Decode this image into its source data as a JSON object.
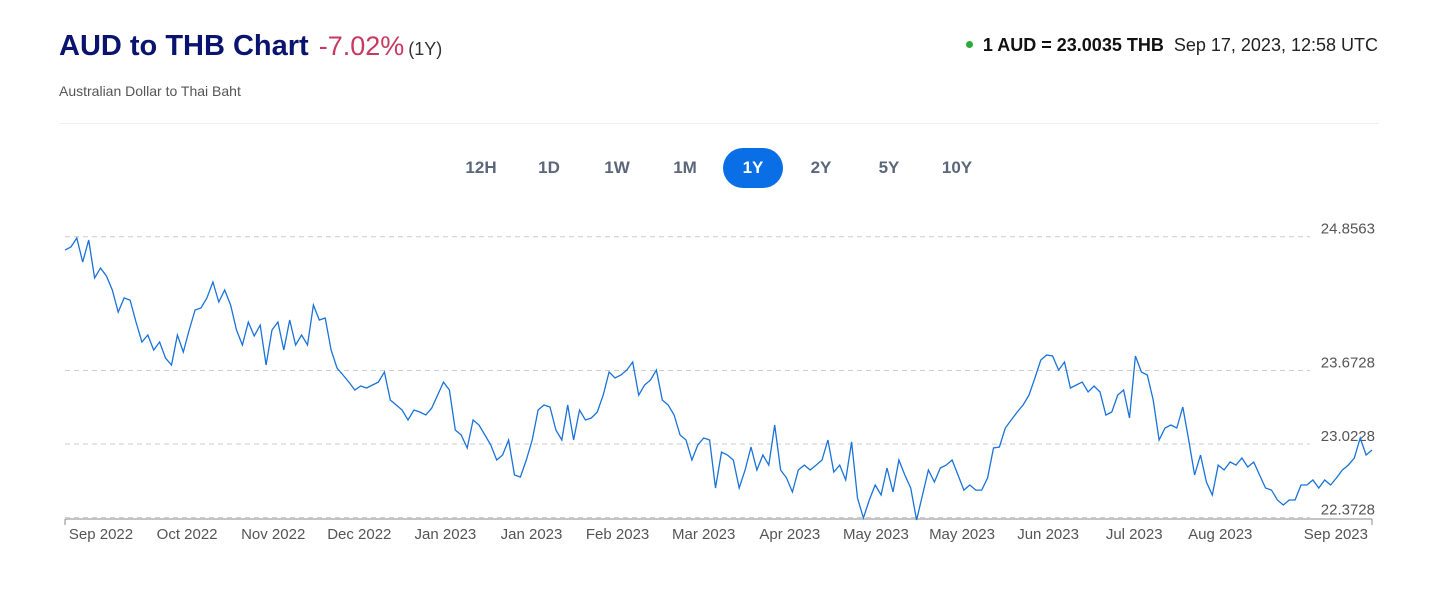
{
  "header": {
    "title": "AUD to THB Chart",
    "change": "-7.02%",
    "period": "(1Y)",
    "subtitle": "Australian Dollar to Thai Baht",
    "rate": "1 AUD = 23.0035 THB",
    "timestamp": "Sep 17, 2023, 12:58 UTC"
  },
  "range_buttons": [
    "12H",
    "1D",
    "1W",
    "1M",
    "1Y",
    "2Y",
    "5Y",
    "10Y"
  ],
  "active_button": "1Y",
  "chart_data": {
    "type": "line",
    "color": "#1a73d9",
    "grid": true,
    "ylim": [
      22.36,
      24.92
    ],
    "yticks": [
      22.3728,
      23.0228,
      23.6728,
      24.8563
    ],
    "x_labels": [
      "Sep 2022",
      "Oct 2022",
      "Nov 2022",
      "Dec 2022",
      "Jan 2023",
      "Jan 2023",
      "Feb 2023",
      "Mar 2023",
      "Apr 2023",
      "May 2023",
      "May 2023",
      "Jun 2023",
      "Jul 2023",
      "Aug 2023",
      "Sep 2023"
    ],
    "values": [
      24.738,
      24.765,
      24.845,
      24.632,
      24.827,
      24.491,
      24.579,
      24.509,
      24.385,
      24.19,
      24.314,
      24.296,
      24.102,
      23.925,
      23.987,
      23.854,
      23.925,
      23.784,
      23.722,
      23.987,
      23.837,
      24.031,
      24.208,
      24.226,
      24.314,
      24.456,
      24.279,
      24.385,
      24.252,
      24.031,
      23.899,
      24.102,
      23.978,
      24.075,
      23.722,
      24.031,
      24.102,
      23.854,
      24.12,
      23.899,
      23.987,
      23.899,
      24.252,
      24.12,
      24.137,
      23.854,
      23.695,
      23.633,
      23.571,
      23.501,
      23.536,
      23.518,
      23.545,
      23.571,
      23.66,
      23.412,
      23.368,
      23.324,
      23.235,
      23.324,
      23.306,
      23.28,
      23.341,
      23.456,
      23.571,
      23.501,
      23.147,
      23.103,
      22.988,
      23.235,
      23.191,
      23.103,
      23.014,
      22.882,
      22.926,
      23.059,
      22.749,
      22.731,
      22.882,
      23.059,
      23.324,
      23.368,
      23.35,
      23.147,
      23.059,
      23.368,
      23.059,
      23.324,
      23.235,
      23.253,
      23.306,
      23.456,
      23.66,
      23.607,
      23.633,
      23.677,
      23.748,
      23.456,
      23.545,
      23.589,
      23.677,
      23.412,
      23.368,
      23.28,
      23.103,
      23.059,
      22.882,
      23.014,
      23.076,
      23.059,
      22.634,
      22.952,
      22.926,
      22.882,
      22.634,
      22.793,
      22.997,
      22.793,
      22.926,
      22.837,
      23.191,
      22.793,
      22.723,
      22.599,
      22.793,
      22.837,
      22.793,
      22.837,
      22.882,
      23.059,
      22.776,
      22.837,
      22.705,
      23.041,
      22.546,
      22.369,
      22.528,
      22.661,
      22.572,
      22.811,
      22.599,
      22.882,
      22.749,
      22.634,
      22.351,
      22.572,
      22.793,
      22.687,
      22.811,
      22.837,
      22.882,
      22.749,
      22.616,
      22.661,
      22.616,
      22.616,
      22.723,
      22.988,
      22.997,
      23.165,
      23.235,
      23.306,
      23.368,
      23.456,
      23.607,
      23.766,
      23.81,
      23.801,
      23.677,
      23.748,
      23.518,
      23.545,
      23.571,
      23.483,
      23.536,
      23.483,
      23.28,
      23.306,
      23.456,
      23.501,
      23.253,
      23.801,
      23.66,
      23.633,
      23.412,
      23.059,
      23.165,
      23.191,
      23.165,
      23.35,
      23.059,
      22.749,
      22.926,
      22.687,
      22.572,
      22.837,
      22.793,
      22.864,
      22.837,
      22.899,
      22.82,
      22.864,
      22.749,
      22.634,
      22.616,
      22.528,
      22.484,
      22.528,
      22.528,
      22.661,
      22.661,
      22.705,
      22.634,
      22.705,
      22.661,
      22.723,
      22.793,
      22.837,
      22.899,
      23.076,
      22.926,
      22.97
    ]
  }
}
